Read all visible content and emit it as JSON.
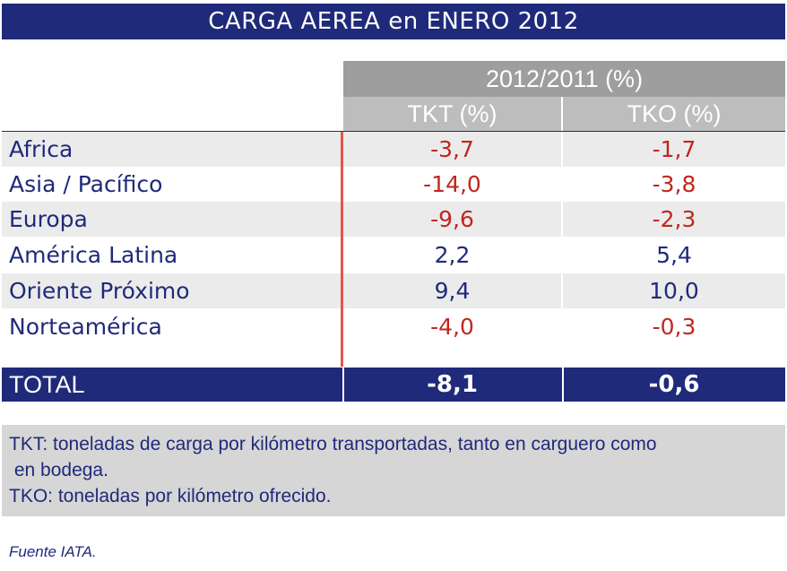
{
  "title": "CARGA AEREA en ENERO 2012",
  "header": {
    "group": "2012/2011 (%)",
    "col1": "TKT (%)",
    "col2": "TKO (%)"
  },
  "rows": [
    {
      "region": "Africa",
      "tkt": "-3,7",
      "tko": "-1,7"
    },
    {
      "region": "Asia / Pacífico",
      "tkt": "-14,0",
      "tko": "-3,8"
    },
    {
      "region": "Europa",
      "tkt": "-9,6",
      "tko": "-2,3"
    },
    {
      "region": "América Latina",
      "tkt": "2,2",
      "tko": "5,4"
    },
    {
      "region": "Oriente Próximo",
      "tkt": "9,4",
      "tko": "10,0"
    },
    {
      "region": "Norteamérica",
      "tkt": "-4,0",
      "tko": "-0,3"
    }
  ],
  "total": {
    "label": "TOTAL",
    "tkt": "-8,1",
    "tko": "-0,6"
  },
  "notes": [
    "TKT: toneladas de carga por kilómetro transportadas, tanto en carguero como",
    " en bodega.",
    "TKO: toneladas por kilómetro ofrecido."
  ],
  "source": "Fuente IATA.",
  "colors": {
    "navy": "#1f2a7a",
    "negative": "#c0271f",
    "accent_line": "#e2574c"
  }
}
